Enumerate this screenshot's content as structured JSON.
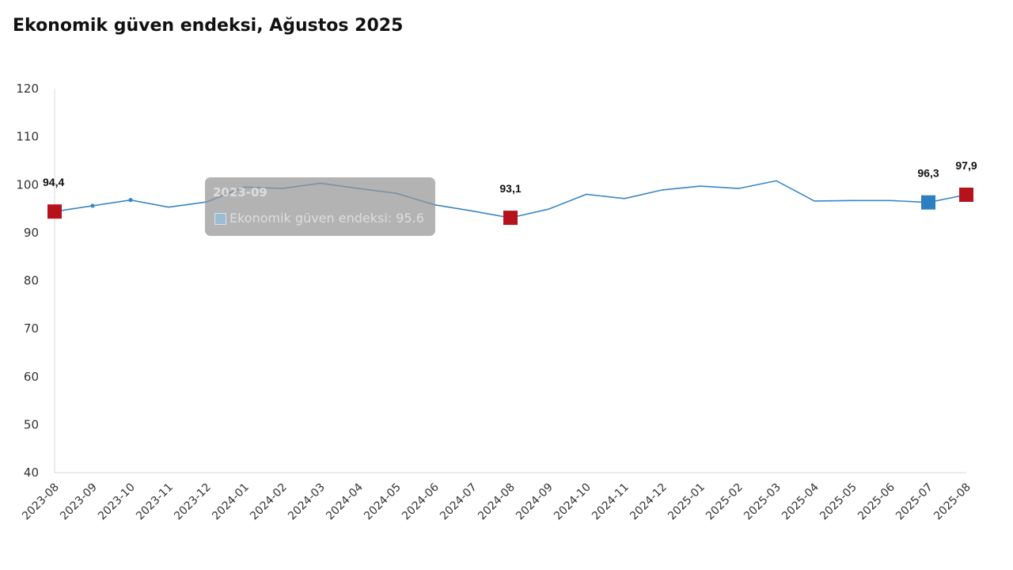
{
  "title": "Ekonomik güven endeksi, Ağustos 2025",
  "colors": {
    "line": "#3a86c3",
    "highlight_red": "#b5121b",
    "highlight_blue": "#2e7fc1",
    "axis": "#d9d9d9"
  },
  "tooltip": {
    "date": "2023-09",
    "text": "Ekonomik güven endeksi: 95.6"
  },
  "chart_data": {
    "type": "line",
    "title": "Ekonomik güven endeksi, Ağustos 2025",
    "categories": [
      "2023-08",
      "2023-09",
      "2023-10",
      "2023-11",
      "2023-12",
      "2024-01",
      "2024-02",
      "2024-03",
      "2024-04",
      "2024-05",
      "2024-06",
      "2024-07",
      "2024-08",
      "2024-09",
      "2024-10",
      "2024-11",
      "2024-12",
      "2025-01",
      "2025-02",
      "2025-03",
      "2025-04",
      "2025-05",
      "2025-06",
      "2025-07",
      "2025-08"
    ],
    "series": [
      {
        "name": "Ekonomik güven endeksi",
        "values": [
          94.4,
          95.6,
          96.8,
          95.3,
          96.4,
          99.5,
          99.2,
          100.3,
          99.2,
          98.2,
          95.8,
          94.5,
          93.1,
          94.9,
          98.0,
          97.1,
          98.9,
          99.7,
          99.2,
          100.8,
          96.6,
          96.7,
          96.7,
          96.3,
          97.9
        ]
      }
    ],
    "highlights": [
      {
        "index": 0,
        "label": "94,4",
        "color": "red"
      },
      {
        "index": 12,
        "label": "93,1",
        "color": "red"
      },
      {
        "index": 23,
        "label": "96,3",
        "color": "blue"
      },
      {
        "index": 24,
        "label": "97,9",
        "color": "red"
      }
    ],
    "small_markers": [
      1,
      2
    ],
    "ylim": [
      40,
      120
    ],
    "yticks": [
      40,
      50,
      60,
      70,
      80,
      90,
      100,
      110,
      120
    ],
    "xlabel": "",
    "ylabel": "",
    "grid": false,
    "legend": "none"
  }
}
